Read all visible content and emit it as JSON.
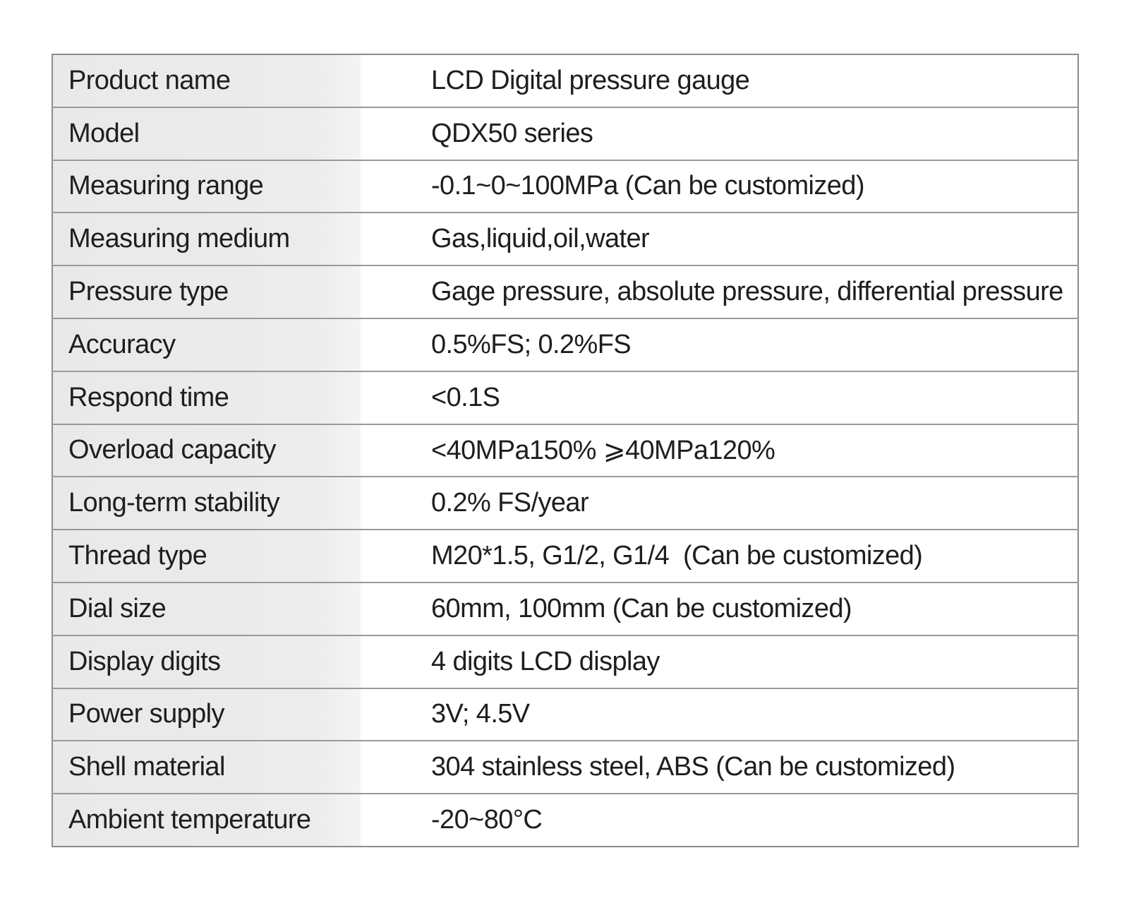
{
  "spec_table": {
    "rows": [
      {
        "label": "Product name",
        "value": "LCD Digital pressure gauge"
      },
      {
        "label": "Model",
        "value": "QDX50 series"
      },
      {
        "label": "Measuring range",
        "value": "-0.1~0~100MPa (Can be customized)"
      },
      {
        "label": "Measuring medium",
        "value": "Gas,liquid,oil,water"
      },
      {
        "label": "Pressure type",
        "value": "Gage pressure, absolute pressure, differential pressure"
      },
      {
        "label": "Accuracy",
        "value": "0.5%FS; 0.2%FS"
      },
      {
        "label": "Respond time",
        "value": "<0.1S"
      },
      {
        "label": "Overload capacity",
        "value": "<40MPa150% ⩾40MPa120%"
      },
      {
        "label": "Long-term stability",
        "value": "0.2% FS/year"
      },
      {
        "label": "Thread type",
        "value": "M20*1.5, G1/2, G1/4  (Can be customized)"
      },
      {
        "label": "Dial size",
        "value": "60mm, 100mm (Can be customized)"
      },
      {
        "label": "Display digits",
        "value": "4 digits LCD display"
      },
      {
        "label": "Power supply",
        "value": "3V; 4.5V"
      },
      {
        "label": "Shell material",
        "value": "304 stainless steel, ABS (Can be customized)"
      },
      {
        "label": "Ambient temperature",
        "value": "-20~80°C"
      }
    ]
  }
}
